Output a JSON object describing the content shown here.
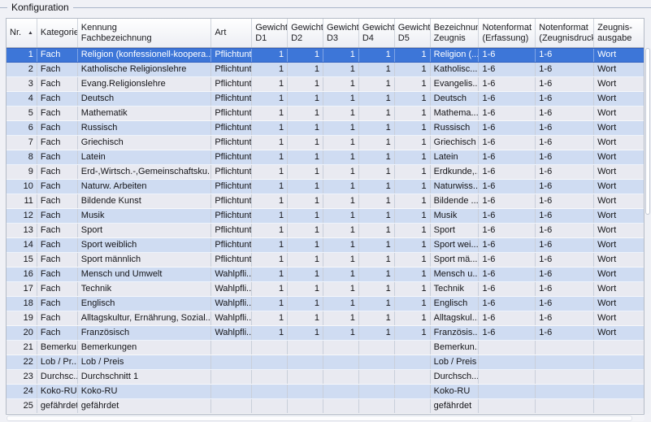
{
  "group_title": "Konfiguration",
  "sort_icon": "▲",
  "colors": {
    "selection_blue": "#3d76d8",
    "selection_border": "#2f5fc0",
    "row_blue": "#cfdcf2",
    "row_gray": "#e9eaf1",
    "grid_line": "#c9cfda",
    "groupbox_line": "#a9b6c9"
  },
  "table": {
    "selected_nr": "1",
    "columns": [
      {
        "key": "nr",
        "l1": "Nr.",
        "l2": ""
      },
      {
        "key": "kategorie",
        "l1": "Kategorie",
        "l2": ""
      },
      {
        "key": "kennung",
        "l1": "Kennung",
        "l2": "Fachbezeichnung"
      },
      {
        "key": "art",
        "l1": "Art",
        "l2": ""
      },
      {
        "key": "d1",
        "l1": "Gewicht",
        "l2": "D1"
      },
      {
        "key": "d2",
        "l1": "Gewicht",
        "l2": "D2"
      },
      {
        "key": "d3",
        "l1": "Gewicht",
        "l2": "D3"
      },
      {
        "key": "d4",
        "l1": "Gewicht",
        "l2": "D4"
      },
      {
        "key": "d5",
        "l1": "Gewicht",
        "l2": "D5"
      },
      {
        "key": "bezeichnung",
        "l1": "Bezeichnun",
        "l2": "Zeugnis"
      },
      {
        "key": "nf_erfassung",
        "l1": "Notenformat",
        "l2": "(Erfassung)"
      },
      {
        "key": "nf_zeugnisdruck",
        "l1": "Notenformat",
        "l2": "(Zeugnisdruck)"
      },
      {
        "key": "ausgabe",
        "l1": "Zeugnis-",
        "l2": "ausgabe"
      }
    ],
    "rows": [
      {
        "nr": "1",
        "kategorie": "Fach",
        "kennung": "Religion (konfessionell-koopera...",
        "art": "Pflichtunt",
        "d1": "1",
        "d2": "1",
        "d3": "1",
        "d4": "1",
        "d5": "1",
        "bezeichnung": "Religion (...",
        "nf_erfassung": "1-6",
        "nf_zeugnisdruck": "1-6",
        "ausgabe": "Wort"
      },
      {
        "nr": "2",
        "kategorie": "Fach",
        "kennung": "Katholische Religionslehre",
        "art": "Pflichtunt",
        "d1": "1",
        "d2": "1",
        "d3": "1",
        "d4": "1",
        "d5": "1",
        "bezeichnung": "Katholisc...",
        "nf_erfassung": "1-6",
        "nf_zeugnisdruck": "1-6",
        "ausgabe": "Wort"
      },
      {
        "nr": "3",
        "kategorie": "Fach",
        "kennung": "Evang.Religionslehre",
        "art": "Pflichtunt",
        "d1": "1",
        "d2": "1",
        "d3": "1",
        "d4": "1",
        "d5": "1",
        "bezeichnung": "Evangelis...",
        "nf_erfassung": "1-6",
        "nf_zeugnisdruck": "1-6",
        "ausgabe": "Wort"
      },
      {
        "nr": "4",
        "kategorie": "Fach",
        "kennung": "Deutsch",
        "art": "Pflichtunt",
        "d1": "1",
        "d2": "1",
        "d3": "1",
        "d4": "1",
        "d5": "1",
        "bezeichnung": "Deutsch",
        "nf_erfassung": "1-6",
        "nf_zeugnisdruck": "1-6",
        "ausgabe": "Wort"
      },
      {
        "nr": "5",
        "kategorie": "Fach",
        "kennung": "Mathematik",
        "art": "Pflichtunt",
        "d1": "1",
        "d2": "1",
        "d3": "1",
        "d4": "1",
        "d5": "1",
        "bezeichnung": "Mathema...",
        "nf_erfassung": "1-6",
        "nf_zeugnisdruck": "1-6",
        "ausgabe": "Wort"
      },
      {
        "nr": "6",
        "kategorie": "Fach",
        "kennung": "Russisch",
        "art": "Pflichtunt",
        "d1": "1",
        "d2": "1",
        "d3": "1",
        "d4": "1",
        "d5": "1",
        "bezeichnung": "Russisch",
        "nf_erfassung": "1-6",
        "nf_zeugnisdruck": "1-6",
        "ausgabe": "Wort"
      },
      {
        "nr": "7",
        "kategorie": "Fach",
        "kennung": "Griechisch",
        "art": "Pflichtunt",
        "d1": "1",
        "d2": "1",
        "d3": "1",
        "d4": "1",
        "d5": "1",
        "bezeichnung": "Griechisch",
        "nf_erfassung": "1-6",
        "nf_zeugnisdruck": "1-6",
        "ausgabe": "Wort"
      },
      {
        "nr": "8",
        "kategorie": "Fach",
        "kennung": "Latein",
        "art": "Pflichtunt",
        "d1": "1",
        "d2": "1",
        "d3": "1",
        "d4": "1",
        "d5": "1",
        "bezeichnung": "Latein",
        "nf_erfassung": "1-6",
        "nf_zeugnisdruck": "1-6",
        "ausgabe": "Wort"
      },
      {
        "nr": "9",
        "kategorie": "Fach",
        "kennung": "Erd-,Wirtsch.-,Gemeinschaftsku...",
        "art": "Pflichtunt",
        "d1": "1",
        "d2": "1",
        "d3": "1",
        "d4": "1",
        "d5": "1",
        "bezeichnung": "Erdkunde,...",
        "nf_erfassung": "1-6",
        "nf_zeugnisdruck": "1-6",
        "ausgabe": "Wort"
      },
      {
        "nr": "10",
        "kategorie": "Fach",
        "kennung": "Naturw. Arbeiten",
        "art": "Pflichtunt",
        "d1": "1",
        "d2": "1",
        "d3": "1",
        "d4": "1",
        "d5": "1",
        "bezeichnung": "Naturwiss...",
        "nf_erfassung": "1-6",
        "nf_zeugnisdruck": "1-6",
        "ausgabe": "Wort"
      },
      {
        "nr": "11",
        "kategorie": "Fach",
        "kennung": "Bildende Kunst",
        "art": "Pflichtunt",
        "d1": "1",
        "d2": "1",
        "d3": "1",
        "d4": "1",
        "d5": "1",
        "bezeichnung": "Bildende ...",
        "nf_erfassung": "1-6",
        "nf_zeugnisdruck": "1-6",
        "ausgabe": "Wort"
      },
      {
        "nr": "12",
        "kategorie": "Fach",
        "kennung": "Musik",
        "art": "Pflichtunt",
        "d1": "1",
        "d2": "1",
        "d3": "1",
        "d4": "1",
        "d5": "1",
        "bezeichnung": "Musik",
        "nf_erfassung": "1-6",
        "nf_zeugnisdruck": "1-6",
        "ausgabe": "Wort"
      },
      {
        "nr": "13",
        "kategorie": "Fach",
        "kennung": "Sport",
        "art": "Pflichtunt",
        "d1": "1",
        "d2": "1",
        "d3": "1",
        "d4": "1",
        "d5": "1",
        "bezeichnung": "Sport",
        "nf_erfassung": "1-6",
        "nf_zeugnisdruck": "1-6",
        "ausgabe": "Wort"
      },
      {
        "nr": "14",
        "kategorie": "Fach",
        "kennung": "Sport weiblich",
        "art": "Pflichtunt",
        "d1": "1",
        "d2": "1",
        "d3": "1",
        "d4": "1",
        "d5": "1",
        "bezeichnung": "Sport wei...",
        "nf_erfassung": "1-6",
        "nf_zeugnisdruck": "1-6",
        "ausgabe": "Wort"
      },
      {
        "nr": "15",
        "kategorie": "Fach",
        "kennung": "Sport männlich",
        "art": "Pflichtunt",
        "d1": "1",
        "d2": "1",
        "d3": "1",
        "d4": "1",
        "d5": "1",
        "bezeichnung": "Sport mä...",
        "nf_erfassung": "1-6",
        "nf_zeugnisdruck": "1-6",
        "ausgabe": "Wort"
      },
      {
        "nr": "16",
        "kategorie": "Fach",
        "kennung": "Mensch und Umwelt",
        "art": "Wahlpfli...",
        "d1": "1",
        "d2": "1",
        "d3": "1",
        "d4": "1",
        "d5": "1",
        "bezeichnung": "Mensch u...",
        "nf_erfassung": "1-6",
        "nf_zeugnisdruck": "1-6",
        "ausgabe": "Wort"
      },
      {
        "nr": "17",
        "kategorie": "Fach",
        "kennung": "Technik",
        "art": "Wahlpfli...",
        "d1": "1",
        "d2": "1",
        "d3": "1",
        "d4": "1",
        "d5": "1",
        "bezeichnung": "Technik",
        "nf_erfassung": "1-6",
        "nf_zeugnisdruck": "1-6",
        "ausgabe": "Wort"
      },
      {
        "nr": "18",
        "kategorie": "Fach",
        "kennung": "Englisch",
        "art": "Wahlpfli...",
        "d1": "1",
        "d2": "1",
        "d3": "1",
        "d4": "1",
        "d5": "1",
        "bezeichnung": "Englisch",
        "nf_erfassung": "1-6",
        "nf_zeugnisdruck": "1-6",
        "ausgabe": "Wort"
      },
      {
        "nr": "19",
        "kategorie": "Fach",
        "kennung": "Alltagskultur, Ernährung, Sozial...",
        "art": "Wahlpfli...",
        "d1": "1",
        "d2": "1",
        "d3": "1",
        "d4": "1",
        "d5": "1",
        "bezeichnung": "Alltagskul...",
        "nf_erfassung": "1-6",
        "nf_zeugnisdruck": "1-6",
        "ausgabe": "Wort"
      },
      {
        "nr": "20",
        "kategorie": "Fach",
        "kennung": "Französisch",
        "art": "Wahlpfli...",
        "d1": "1",
        "d2": "1",
        "d3": "1",
        "d4": "1",
        "d5": "1",
        "bezeichnung": "Französis...",
        "nf_erfassung": "1-6",
        "nf_zeugnisdruck": "1-6",
        "ausgabe": "Wort"
      },
      {
        "nr": "21",
        "kategorie": "Bemerku...",
        "kennung": "Bemerkungen",
        "art": "",
        "d1": "",
        "d2": "",
        "d3": "",
        "d4": "",
        "d5": "",
        "bezeichnung": "Bemerkun...",
        "nf_erfassung": "",
        "nf_zeugnisdruck": "",
        "ausgabe": ""
      },
      {
        "nr": "22",
        "kategorie": "Lob / Pr...",
        "kennung": "Lob / Preis",
        "art": "",
        "d1": "",
        "d2": "",
        "d3": "",
        "d4": "",
        "d5": "",
        "bezeichnung": "Lob / Preis",
        "nf_erfassung": "",
        "nf_zeugnisdruck": "",
        "ausgabe": ""
      },
      {
        "nr": "23",
        "kategorie": "Durchsc...",
        "kennung": "Durchschnitt 1",
        "art": "",
        "d1": "",
        "d2": "",
        "d3": "",
        "d4": "",
        "d5": "",
        "bezeichnung": "Durchsch...",
        "nf_erfassung": "",
        "nf_zeugnisdruck": "",
        "ausgabe": ""
      },
      {
        "nr": "24",
        "kategorie": "Koko-RU",
        "kennung": "Koko-RU",
        "art": "",
        "d1": "",
        "d2": "",
        "d3": "",
        "d4": "",
        "d5": "",
        "bezeichnung": "Koko-RU",
        "nf_erfassung": "",
        "nf_zeugnisdruck": "",
        "ausgabe": ""
      },
      {
        "nr": "25",
        "kategorie": "gefährdet",
        "kennung": "gefährdet",
        "art": "",
        "d1": "",
        "d2": "",
        "d3": "",
        "d4": "",
        "d5": "",
        "bezeichnung": "gefährdet",
        "nf_erfassung": "",
        "nf_zeugnisdruck": "",
        "ausgabe": ""
      }
    ]
  }
}
